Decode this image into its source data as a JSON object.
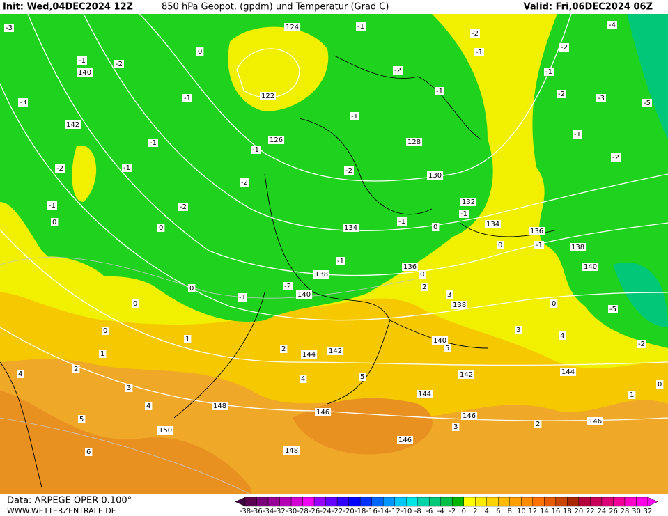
{
  "header": {
    "init": "Init: Wed,04DEC2024 12Z",
    "title": "850 hPa Geopot. (gpdm) und Temperatur (Grad C)",
    "valid": "Valid: Fri,06DEC2024 06Z"
  },
  "map": {
    "geopotential_labels": [
      124,
      122,
      126,
      128,
      130,
      132,
      134,
      134,
      136,
      138,
      136,
      138,
      140,
      138,
      140,
      140,
      142,
      144,
      142,
      144,
      144,
      146,
      146,
      146,
      146,
      148,
      148,
      150,
      142,
      140
    ],
    "temperature_labels": [
      -3,
      -1,
      -2,
      -4,
      -2,
      -1,
      -1,
      -2,
      0,
      -2,
      -1,
      -2,
      -3,
      -5,
      -3,
      -1,
      -1,
      -1,
      -1,
      -1,
      -1,
      -2,
      -2,
      -1,
      -2,
      -2,
      -2,
      -1,
      0,
      0,
      -1,
      0,
      -1,
      -1,
      0,
      -1,
      0,
      0,
      -1,
      -2,
      -5,
      0,
      1,
      2,
      1,
      2,
      3,
      4,
      5,
      6,
      4,
      3,
      4,
      5,
      5,
      4,
      3,
      2,
      2,
      3,
      0,
      0,
      1,
      -2,
      0
    ]
  },
  "legend": {
    "labels": [
      -38,
      -36,
      -34,
      -32,
      -30,
      -28,
      -26,
      -24,
      -22,
      -20,
      -18,
      -16,
      -14,
      -12,
      -10,
      -8,
      -6,
      -4,
      -2,
      0,
      2,
      4,
      6,
      8,
      10,
      12,
      14,
      16,
      18,
      20,
      22,
      24,
      26,
      28,
      30,
      32
    ],
    "colors": [
      "#5a0050",
      "#780078",
      "#960096",
      "#b400b4",
      "#d200d2",
      "#f000f0",
      "#9600ff",
      "#6400ff",
      "#3200ff",
      "#0000ff",
      "#0032ff",
      "#0064ff",
      "#0096ff",
      "#00c8ff",
      "#00e6e6",
      "#00d2aa",
      "#00c878",
      "#00be46",
      "#00b400",
      "#ffff00",
      "#ffeb00",
      "#ffd200",
      "#ffb900",
      "#ffa000",
      "#ff8c00",
      "#ff7300",
      "#e65a00",
      "#c84600",
      "#aa2800",
      "#b4003c",
      "#c8005a",
      "#dc0078",
      "#f00096",
      "#ff00c8",
      "#ff00e6"
    ],
    "low_color": "#400040",
    "high_color": "#ff00ff"
  },
  "footer": {
    "source": "Data: ARPEGE OPER 0.100°",
    "site": "WWW.WETTERZENTRALE.DE"
  }
}
